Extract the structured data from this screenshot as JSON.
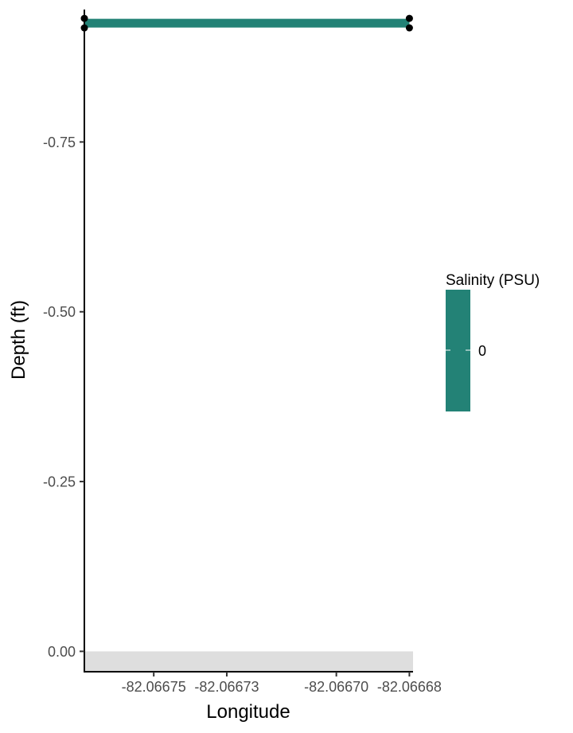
{
  "chart_data": {
    "type": "line",
    "title": "",
    "xlabel": "Longitude",
    "ylabel": "Depth (ft)",
    "x_ticks": [
      {
        "value": -82.06675,
        "label": "-82.06675"
      },
      {
        "value": -82.06673,
        "label": "-82.06673"
      },
      {
        "value": -82.0667,
        "label": "-82.06670"
      },
      {
        "value": -82.06668,
        "label": "-82.06668"
      }
    ],
    "y_ticks": [
      {
        "value": 0.0,
        "label": "0.00"
      },
      {
        "value": -0.25,
        "label": "-0.25"
      },
      {
        "value": -0.5,
        "label": "-0.50"
      },
      {
        "value": -0.75,
        "label": "-0.75"
      }
    ],
    "xlim": [
      -82.066769,
      -82.066679
    ],
    "ylim": [
      0.03,
      -0.945
    ],
    "y_reversed": true,
    "grid": false,
    "seafloor_band": {
      "y_from": 0.0,
      "y_to": 0.03,
      "color": "#dedede"
    },
    "series": [
      {
        "color": "#238276",
        "salinity": 0,
        "points": [
          {
            "x": -82.066769,
            "y": -0.925
          },
          {
            "x": -82.06668,
            "y": -0.925
          }
        ]
      }
    ],
    "markers": [
      {
        "x": -82.066769,
        "y": -0.932
      },
      {
        "x": -82.066769,
        "y": -0.918
      },
      {
        "x": -82.06668,
        "y": -0.932
      },
      {
        "x": -82.06668,
        "y": -0.918
      }
    ],
    "legend": {
      "title": "Salinity (PSU)",
      "labels": [
        "0"
      ],
      "colors": [
        "#238276"
      ],
      "position": "right"
    }
  }
}
